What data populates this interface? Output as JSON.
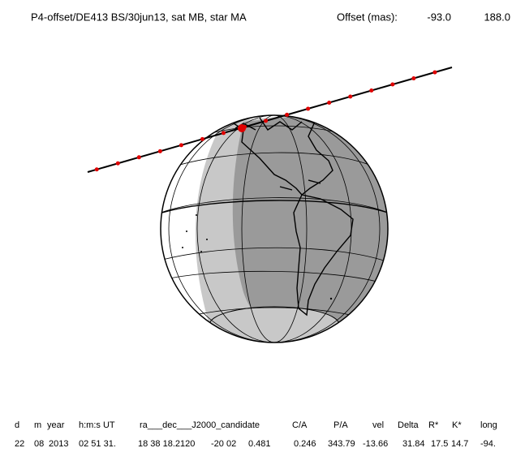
{
  "header": {
    "title": "P4-offset/DE413 BS/30jun13, sat MB, star MA",
    "offset_label": "Offset (mas):",
    "offset_values": [
      "-93.0",
      "188.0"
    ]
  },
  "table": {
    "headers": [
      "d",
      "m",
      "year",
      "h:m:s UT",
      "ra___dec___J2000_candidate",
      "C/A",
      "P/A",
      "vel",
      "Delta",
      "R*",
      "K*",
      "long"
    ],
    "values": [
      "22",
      "08",
      "2013",
      "02 51 31.",
      "18 38 18.2120",
      "-20 02",
      "0.481",
      "0.246",
      "343.79",
      "-13.66",
      "31.84",
      "17.5",
      "14.7",
      "-94."
    ]
  }
}
